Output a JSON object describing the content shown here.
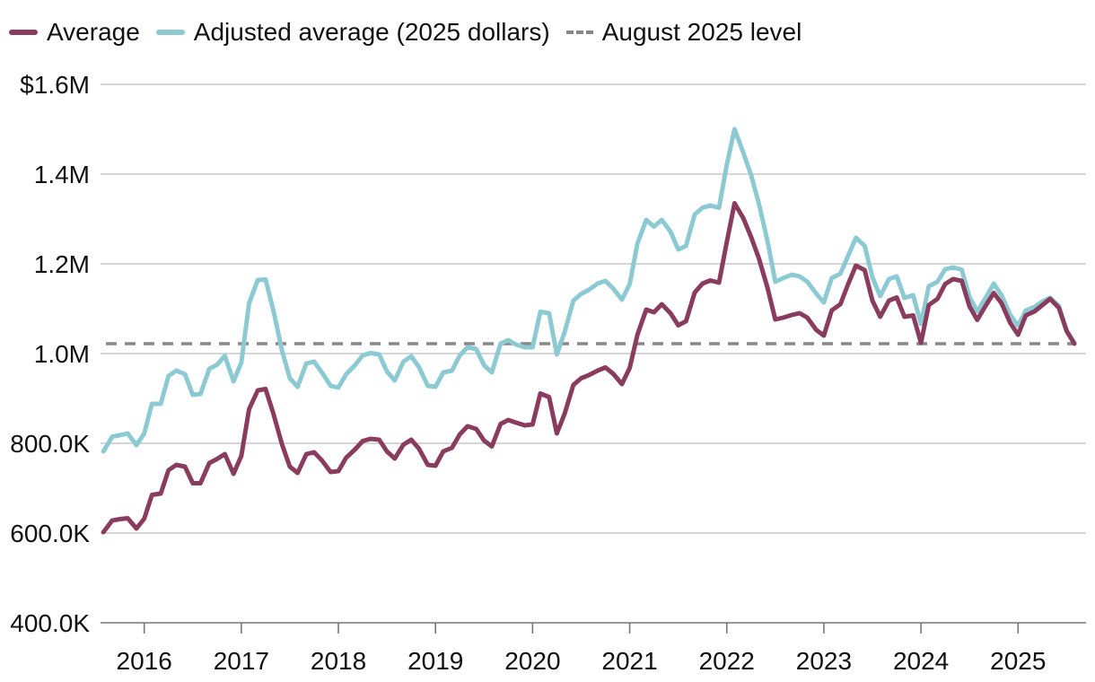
{
  "legend": {
    "items": [
      {
        "label": "Average",
        "color": "#8a3c5e",
        "style": "solid"
      },
      {
        "label": "Adjusted average (2025 dollars)",
        "color": "#8ccad3",
        "style": "solid"
      },
      {
        "label": "August 2025 level",
        "color": "#888888",
        "style": "dashed"
      }
    ]
  },
  "chart_data": {
    "type": "line",
    "xlabel": "",
    "ylabel": "",
    "xlim": [
      2015.55,
      2025.7
    ],
    "ylim": [
      400000,
      1600000
    ],
    "yticks": [
      {
        "value": 400000,
        "label": "400.0K"
      },
      {
        "value": 600000,
        "label": "600.0K"
      },
      {
        "value": 800000,
        "label": "800.0K"
      },
      {
        "value": 1000000,
        "label": "1.0M"
      },
      {
        "value": 1200000,
        "label": "1.2M"
      },
      {
        "value": 1400000,
        "label": "1.4M"
      },
      {
        "value": 1600000,
        "label": "$1.6M"
      }
    ],
    "xticks": [
      {
        "value": 2016,
        "label": "2016"
      },
      {
        "value": 2017,
        "label": "2017"
      },
      {
        "value": 2018,
        "label": "2018"
      },
      {
        "value": 2019,
        "label": "2019"
      },
      {
        "value": 2020,
        "label": "2020"
      },
      {
        "value": 2021,
        "label": "2021"
      },
      {
        "value": 2022,
        "label": "2022"
      },
      {
        "value": 2023,
        "label": "2023"
      },
      {
        "value": 2024,
        "label": "2024"
      },
      {
        "value": 2025,
        "label": "2025"
      }
    ],
    "grid": "horizontal",
    "legend_position": "top-left",
    "reference_line": {
      "name": "August 2025 level",
      "value": 1022000,
      "color": "#888888",
      "style": "dashed"
    },
    "series": [
      {
        "name": "Average",
        "color": "#8a3c5e",
        "points": [
          [
            2015.58,
            602000
          ],
          [
            2015.67,
            628000
          ],
          [
            2015.75,
            631000
          ],
          [
            2015.83,
            633000
          ],
          [
            2015.92,
            610000
          ],
          [
            2016.0,
            632000
          ],
          [
            2016.08,
            685000
          ],
          [
            2016.17,
            688000
          ],
          [
            2016.25,
            740000
          ],
          [
            2016.33,
            752000
          ],
          [
            2016.42,
            748000
          ],
          [
            2016.5,
            711000
          ],
          [
            2016.58,
            711000
          ],
          [
            2016.67,
            756000
          ],
          [
            2016.75,
            765000
          ],
          [
            2016.83,
            776000
          ],
          [
            2016.92,
            732000
          ],
          [
            2017.0,
            772000
          ],
          [
            2017.08,
            876000
          ],
          [
            2017.17,
            918000
          ],
          [
            2017.25,
            921000
          ],
          [
            2017.33,
            866000
          ],
          [
            2017.42,
            797000
          ],
          [
            2017.5,
            748000
          ],
          [
            2017.58,
            734000
          ],
          [
            2017.67,
            776000
          ],
          [
            2017.75,
            780000
          ],
          [
            2017.83,
            762000
          ],
          [
            2017.92,
            736000
          ],
          [
            2018.0,
            738000
          ],
          [
            2018.08,
            768000
          ],
          [
            2018.17,
            786000
          ],
          [
            2018.25,
            805000
          ],
          [
            2018.33,
            810000
          ],
          [
            2018.42,
            808000
          ],
          [
            2018.5,
            782000
          ],
          [
            2018.58,
            766000
          ],
          [
            2018.67,
            797000
          ],
          [
            2018.75,
            808000
          ],
          [
            2018.83,
            788000
          ],
          [
            2018.92,
            752000
          ],
          [
            2019.0,
            750000
          ],
          [
            2019.08,
            782000
          ],
          [
            2019.17,
            790000
          ],
          [
            2019.25,
            820000
          ],
          [
            2019.33,
            838000
          ],
          [
            2019.42,
            832000
          ],
          [
            2019.5,
            806000
          ],
          [
            2019.58,
            793000
          ],
          [
            2019.67,
            843000
          ],
          [
            2019.75,
            852000
          ],
          [
            2019.83,
            846000
          ],
          [
            2019.92,
            840000
          ],
          [
            2020.0,
            842000
          ],
          [
            2020.08,
            911000
          ],
          [
            2020.17,
            903000
          ],
          [
            2020.25,
            822000
          ],
          [
            2020.33,
            866000
          ],
          [
            2020.42,
            930000
          ],
          [
            2020.5,
            945000
          ],
          [
            2020.58,
            952000
          ],
          [
            2020.67,
            962000
          ],
          [
            2020.75,
            969000
          ],
          [
            2020.83,
            955000
          ],
          [
            2020.92,
            932000
          ],
          [
            2021.0,
            968000
          ],
          [
            2021.08,
            1042000
          ],
          [
            2021.17,
            1098000
          ],
          [
            2021.25,
            1092000
          ],
          [
            2021.33,
            1110000
          ],
          [
            2021.42,
            1090000
          ],
          [
            2021.5,
            1063000
          ],
          [
            2021.58,
            1072000
          ],
          [
            2021.67,
            1136000
          ],
          [
            2021.75,
            1156000
          ],
          [
            2021.83,
            1163000
          ],
          [
            2021.92,
            1158000
          ],
          [
            2022.0,
            1248000
          ],
          [
            2022.08,
            1335000
          ],
          [
            2022.17,
            1302000
          ],
          [
            2022.25,
            1260000
          ],
          [
            2022.33,
            1213000
          ],
          [
            2022.42,
            1146000
          ],
          [
            2022.5,
            1076000
          ],
          [
            2022.58,
            1080000
          ],
          [
            2022.67,
            1086000
          ],
          [
            2022.75,
            1090000
          ],
          [
            2022.83,
            1080000
          ],
          [
            2022.92,
            1053000
          ],
          [
            2023.0,
            1040000
          ],
          [
            2023.08,
            1096000
          ],
          [
            2023.17,
            1110000
          ],
          [
            2023.25,
            1155000
          ],
          [
            2023.33,
            1196000
          ],
          [
            2023.42,
            1186000
          ],
          [
            2023.5,
            1118000
          ],
          [
            2023.58,
            1082000
          ],
          [
            2023.67,
            1118000
          ],
          [
            2023.75,
            1125000
          ],
          [
            2023.83,
            1082000
          ],
          [
            2023.92,
            1085000
          ],
          [
            2024.0,
            1024000
          ],
          [
            2024.08,
            1108000
          ],
          [
            2024.17,
            1122000
          ],
          [
            2024.25,
            1155000
          ],
          [
            2024.33,
            1166000
          ],
          [
            2024.42,
            1162000
          ],
          [
            2024.5,
            1105000
          ],
          [
            2024.58,
            1075000
          ],
          [
            2024.67,
            1108000
          ],
          [
            2024.75,
            1135000
          ],
          [
            2024.83,
            1112000
          ],
          [
            2024.92,
            1068000
          ],
          [
            2025.0,
            1042000
          ],
          [
            2025.08,
            1085000
          ],
          [
            2025.17,
            1094000
          ],
          [
            2025.25,
            1108000
          ],
          [
            2025.33,
            1122000
          ],
          [
            2025.42,
            1102000
          ],
          [
            2025.5,
            1050000
          ],
          [
            2025.58,
            1022000
          ]
        ]
      },
      {
        "name": "Adjusted average (2025 dollars)",
        "color": "#8ccad3",
        "points": [
          [
            2015.58,
            782000
          ],
          [
            2015.67,
            815000
          ],
          [
            2015.75,
            818000
          ],
          [
            2015.83,
            822000
          ],
          [
            2015.92,
            796000
          ],
          [
            2016.0,
            822000
          ],
          [
            2016.08,
            888000
          ],
          [
            2016.17,
            888000
          ],
          [
            2016.25,
            950000
          ],
          [
            2016.33,
            962000
          ],
          [
            2016.42,
            954000
          ],
          [
            2016.5,
            908000
          ],
          [
            2016.58,
            910000
          ],
          [
            2016.67,
            966000
          ],
          [
            2016.75,
            975000
          ],
          [
            2016.83,
            995000
          ],
          [
            2016.92,
            938000
          ],
          [
            2017.0,
            980000
          ],
          [
            2017.08,
            1112000
          ],
          [
            2017.17,
            1164000
          ],
          [
            2017.25,
            1165000
          ],
          [
            2017.33,
            1096000
          ],
          [
            2017.42,
            1006000
          ],
          [
            2017.5,
            945000
          ],
          [
            2017.58,
            926000
          ],
          [
            2017.67,
            978000
          ],
          [
            2017.75,
            982000
          ],
          [
            2017.83,
            958000
          ],
          [
            2017.92,
            928000
          ],
          [
            2018.0,
            924000
          ],
          [
            2018.08,
            954000
          ],
          [
            2018.17,
            974000
          ],
          [
            2018.25,
            996000
          ],
          [
            2018.33,
            1001000
          ],
          [
            2018.42,
            998000
          ],
          [
            2018.5,
            960000
          ],
          [
            2018.58,
            940000
          ],
          [
            2018.67,
            982000
          ],
          [
            2018.75,
            994000
          ],
          [
            2018.83,
            970000
          ],
          [
            2018.92,
            928000
          ],
          [
            2019.0,
            926000
          ],
          [
            2019.08,
            958000
          ],
          [
            2019.17,
            962000
          ],
          [
            2019.25,
            996000
          ],
          [
            2019.33,
            1014000
          ],
          [
            2019.42,
            1010000
          ],
          [
            2019.5,
            974000
          ],
          [
            2019.58,
            958000
          ],
          [
            2019.67,
            1022000
          ],
          [
            2019.75,
            1030000
          ],
          [
            2019.83,
            1020000
          ],
          [
            2019.92,
            1014000
          ],
          [
            2020.0,
            1014000
          ],
          [
            2020.08,
            1093000
          ],
          [
            2020.17,
            1090000
          ],
          [
            2020.25,
            998000
          ],
          [
            2020.33,
            1048000
          ],
          [
            2020.42,
            1118000
          ],
          [
            2020.5,
            1133000
          ],
          [
            2020.58,
            1142000
          ],
          [
            2020.67,
            1156000
          ],
          [
            2020.75,
            1162000
          ],
          [
            2020.83,
            1145000
          ],
          [
            2020.92,
            1120000
          ],
          [
            2021.0,
            1155000
          ],
          [
            2021.08,
            1245000
          ],
          [
            2021.17,
            1298000
          ],
          [
            2021.25,
            1283000
          ],
          [
            2021.33,
            1298000
          ],
          [
            2021.42,
            1272000
          ],
          [
            2021.5,
            1232000
          ],
          [
            2021.58,
            1240000
          ],
          [
            2021.67,
            1310000
          ],
          [
            2021.75,
            1325000
          ],
          [
            2021.83,
            1330000
          ],
          [
            2021.92,
            1325000
          ],
          [
            2022.0,
            1420000
          ],
          [
            2022.08,
            1500000
          ],
          [
            2022.17,
            1448000
          ],
          [
            2022.25,
            1398000
          ],
          [
            2022.33,
            1335000
          ],
          [
            2022.42,
            1250000
          ],
          [
            2022.5,
            1160000
          ],
          [
            2022.58,
            1168000
          ],
          [
            2022.67,
            1176000
          ],
          [
            2022.75,
            1172000
          ],
          [
            2022.83,
            1160000
          ],
          [
            2022.92,
            1134000
          ],
          [
            2023.0,
            1114000
          ],
          [
            2023.08,
            1168000
          ],
          [
            2023.17,
            1178000
          ],
          [
            2023.25,
            1218000
          ],
          [
            2023.33,
            1258000
          ],
          [
            2023.42,
            1240000
          ],
          [
            2023.5,
            1170000
          ],
          [
            2023.58,
            1128000
          ],
          [
            2023.67,
            1166000
          ],
          [
            2023.75,
            1172000
          ],
          [
            2023.83,
            1124000
          ],
          [
            2023.92,
            1130000
          ],
          [
            2024.0,
            1066000
          ],
          [
            2024.08,
            1150000
          ],
          [
            2024.17,
            1160000
          ],
          [
            2024.25,
            1188000
          ],
          [
            2024.33,
            1192000
          ],
          [
            2024.42,
            1187000
          ],
          [
            2024.5,
            1126000
          ],
          [
            2024.58,
            1094000
          ],
          [
            2024.67,
            1126000
          ],
          [
            2024.75,
            1156000
          ],
          [
            2024.83,
            1130000
          ],
          [
            2024.92,
            1086000
          ],
          [
            2025.0,
            1062000
          ],
          [
            2025.08,
            1096000
          ],
          [
            2025.17,
            1104000
          ],
          [
            2025.25,
            1116000
          ],
          [
            2025.33,
            1124000
          ],
          [
            2025.42,
            1106000
          ],
          [
            2025.5,
            1052000
          ],
          [
            2025.58,
            1024000
          ]
        ]
      }
    ]
  }
}
